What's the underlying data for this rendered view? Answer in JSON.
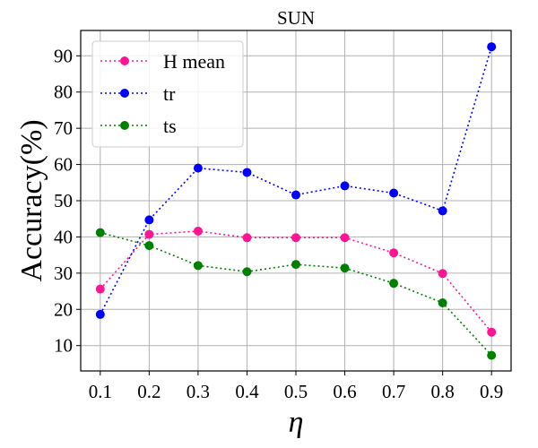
{
  "chart_data": {
    "type": "line",
    "title": "SUN",
    "xlabel": "η",
    "ylabel": "Accuracy(%)",
    "x": [
      0.1,
      0.2,
      0.3,
      0.4,
      0.5,
      0.6,
      0.7,
      0.8,
      0.9
    ],
    "x_tick_labels": [
      "0.1",
      "0.2",
      "0.3",
      "0.4",
      "0.5",
      "0.6",
      "0.7",
      "0.8",
      "0.9"
    ],
    "y_ticks": [
      10,
      20,
      30,
      40,
      50,
      60,
      70,
      80,
      90
    ],
    "xlim": [
      0.06,
      0.94
    ],
    "ylim": [
      3,
      97
    ],
    "grid": true,
    "legend_position": "upper-left",
    "series": [
      {
        "name": "H mean",
        "color": "#ff1493",
        "values": [
          25.6,
          40.7,
          41.6,
          39.8,
          39.8,
          39.8,
          35.6,
          29.9,
          13.7
        ]
      },
      {
        "name": "tr",
        "color": "#0000ff",
        "values": [
          18.6,
          44.7,
          59.0,
          57.8,
          51.6,
          54.1,
          52.1,
          47.2,
          92.5
        ]
      },
      {
        "name": "ts",
        "color": "#008000",
        "values": [
          41.2,
          37.6,
          32.1,
          30.4,
          32.4,
          31.4,
          27.2,
          21.8,
          7.3
        ]
      }
    ]
  }
}
